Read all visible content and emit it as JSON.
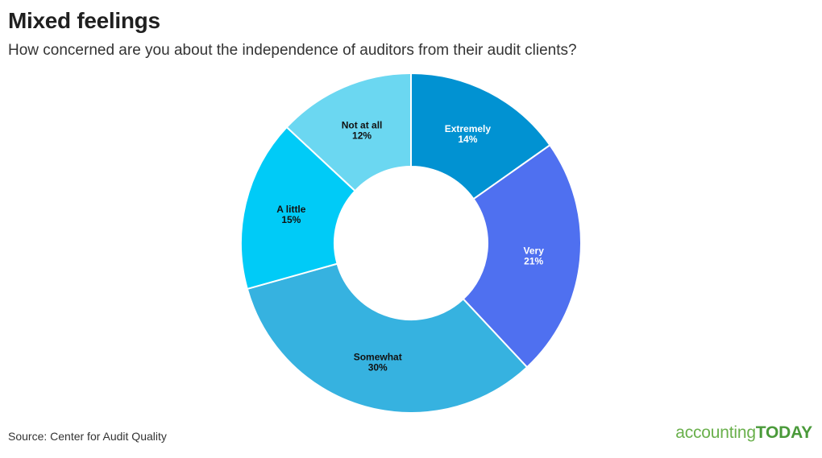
{
  "header": {
    "title": "Mixed feelings",
    "subtitle": "How concerned are you about the independence of auditors from their audit clients?"
  },
  "footer": {
    "source": "Source: Center for Audit Quality",
    "logo_part1": "accounting",
    "logo_part2": "TODAY"
  },
  "chart_data": {
    "type": "pie",
    "variant": "donut",
    "title": "Mixed feelings",
    "subtitle": "How concerned are you about the independence of auditors from their audit clients?",
    "slices": [
      {
        "label": "Extremely",
        "value": 14,
        "value_label": "14%",
        "color": "#0192d2",
        "text_color": "#ffffff"
      },
      {
        "label": "Very",
        "value": 21,
        "value_label": "21%",
        "color": "#4f70f0",
        "text_color": "#ffffff"
      },
      {
        "label": "Somewhat",
        "value": 30,
        "value_label": "30%",
        "color": "#36b2e0",
        "text_color": "#111111"
      },
      {
        "label": "A little",
        "value": 15,
        "value_label": "15%",
        "color": "#00cbf7",
        "text_color": "#111111"
      },
      {
        "label": "Not at all",
        "value": 12,
        "value_label": "12%",
        "color": "#6bd7f1",
        "text_color": "#111111"
      }
    ],
    "legend": "none",
    "start_angle": "top, clockwise"
  }
}
